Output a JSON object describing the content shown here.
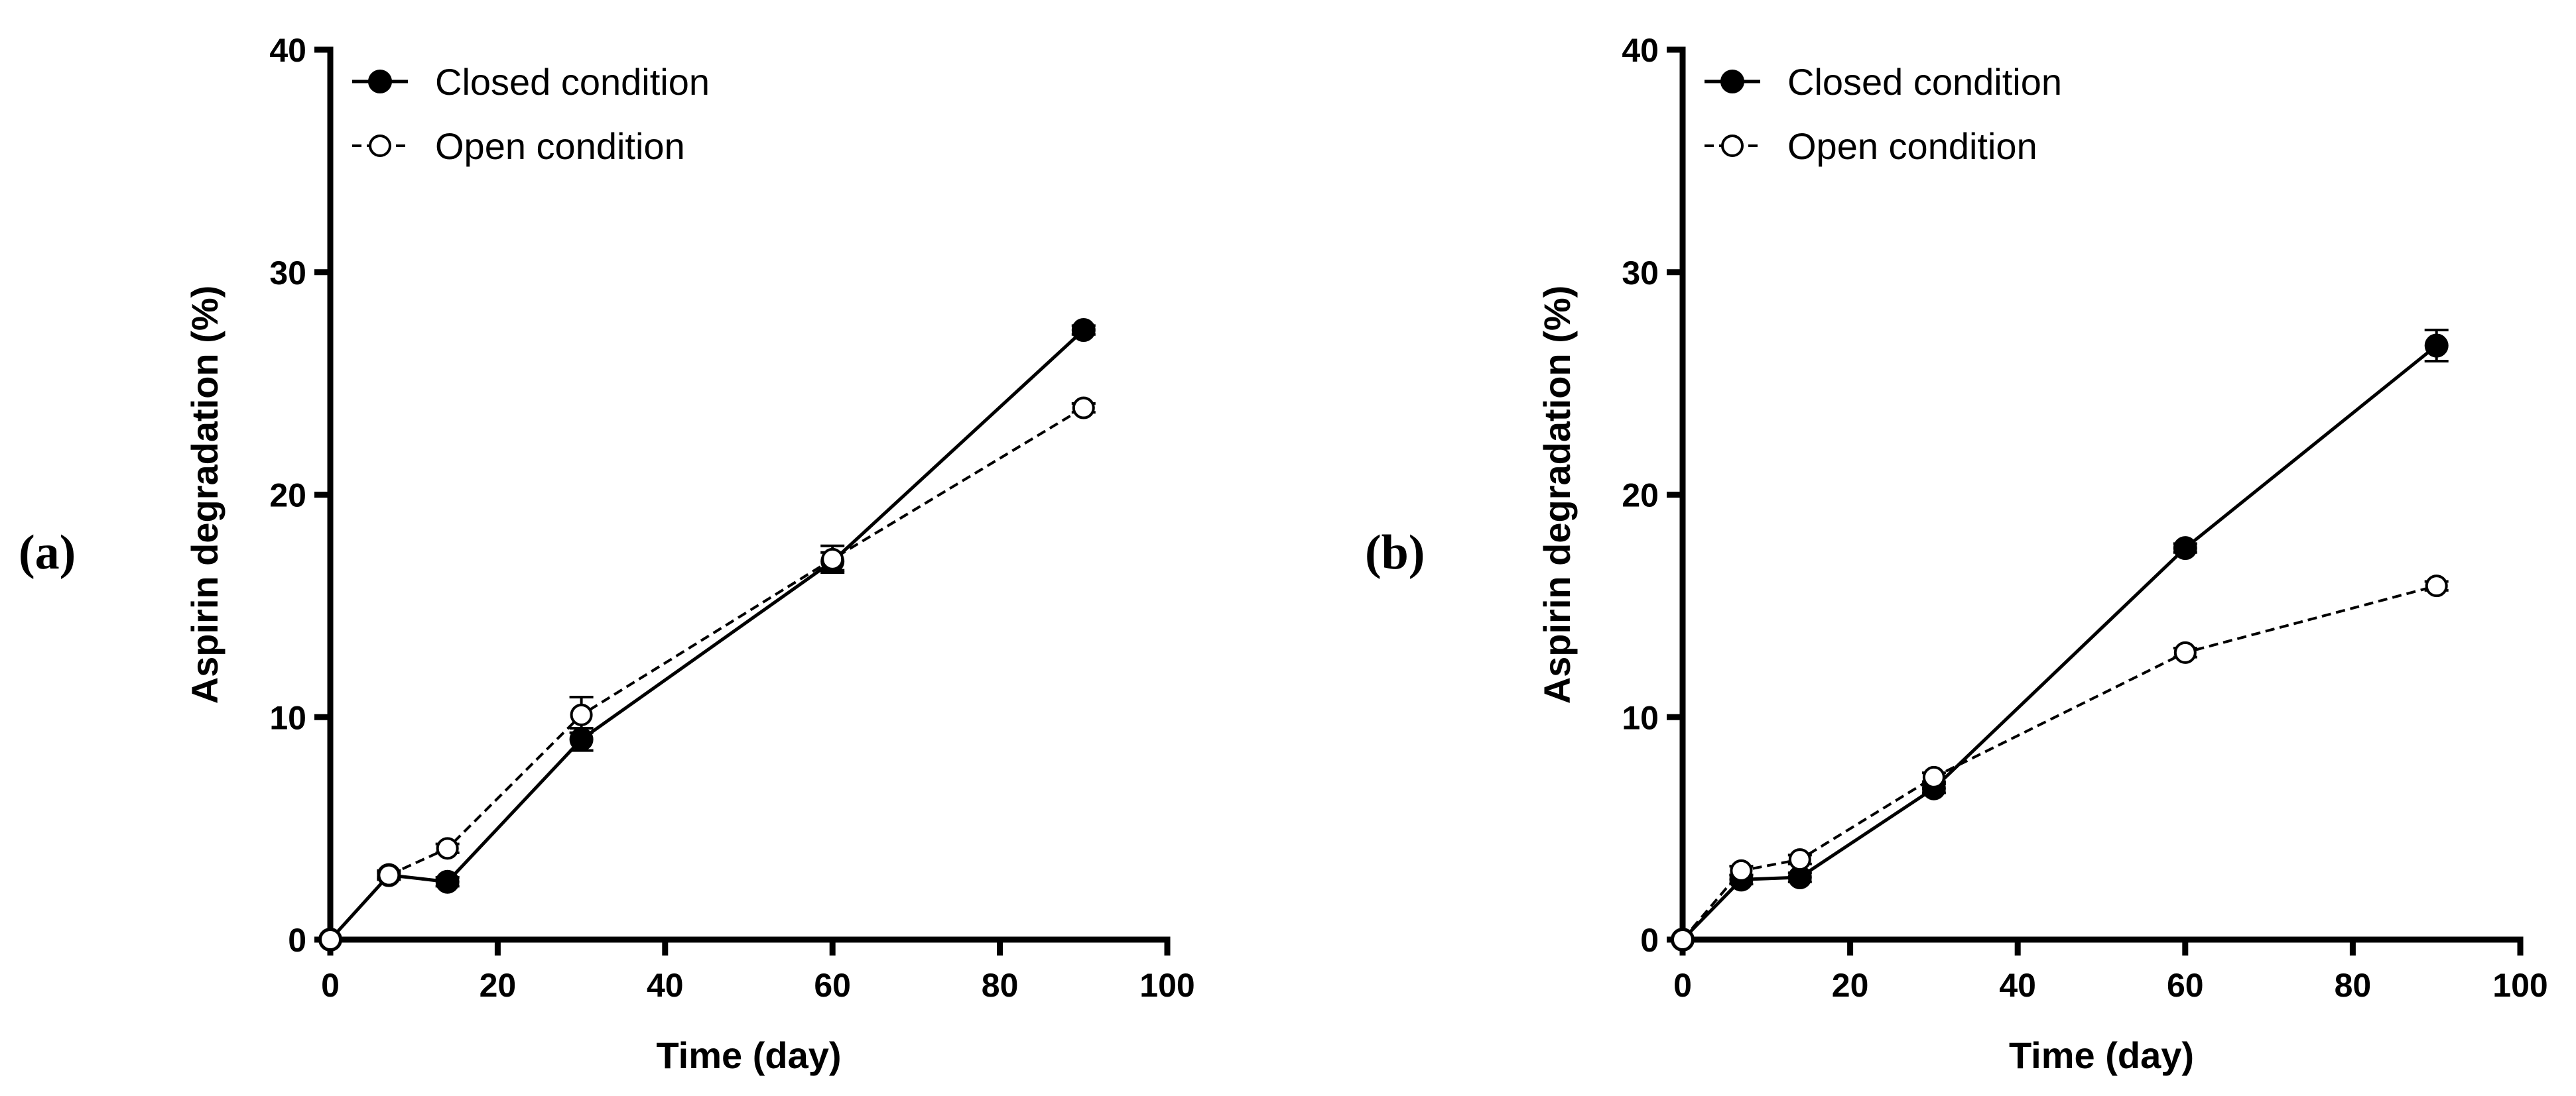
{
  "chart_data": [
    {
      "type": "line",
      "panel_label": "(a)",
      "xlabel": "Time (day)",
      "ylabel": "Aspirin degradation (%)",
      "xlim": [
        0,
        100
      ],
      "ylim": [
        0,
        40
      ],
      "xticks": [
        0,
        20,
        40,
        60,
        80,
        100
      ],
      "yticks": [
        0,
        10,
        20,
        30,
        40
      ],
      "legend_position": "top-left",
      "series": [
        {
          "name": "Closed condition",
          "marker": "filled-circle",
          "line": "solid",
          "x": [
            0,
            7,
            14,
            30,
            60,
            90
          ],
          "y": [
            0,
            2.9,
            2.6,
            9.0,
            17.0,
            27.4
          ],
          "err": [
            0,
            0.2,
            0.2,
            0.5,
            0.4,
            0.2
          ]
        },
        {
          "name": "Open condition",
          "marker": "open-circle",
          "line": "dashed",
          "x": [
            0,
            7,
            14,
            30,
            60,
            90
          ],
          "y": [
            0,
            2.9,
            4.1,
            10.1,
            17.1,
            23.9
          ],
          "err": [
            0,
            0.1,
            0.2,
            0.8,
            0.6,
            0.2
          ]
        }
      ]
    },
    {
      "type": "line",
      "panel_label": "(b)",
      "xlabel": "Time (day)",
      "ylabel": "Aspirin degradation (%)",
      "xlim": [
        0,
        100
      ],
      "ylim": [
        0,
        40
      ],
      "xticks": [
        0,
        20,
        40,
        60,
        80,
        100
      ],
      "yticks": [
        0,
        10,
        20,
        30,
        40
      ],
      "legend_position": "top-left",
      "series": [
        {
          "name": "Closed condition",
          "marker": "filled-circle",
          "line": "solid",
          "x": [
            0,
            7,
            14,
            30,
            60,
            90
          ],
          "y": [
            0,
            2.7,
            2.8,
            6.8,
            17.6,
            26.7
          ],
          "err": [
            0,
            0.2,
            0.2,
            0.2,
            0.2,
            0.7
          ]
        },
        {
          "name": "Open condition",
          "marker": "open-circle",
          "line": "dashed",
          "x": [
            0,
            7,
            14,
            30,
            60,
            90
          ],
          "y": [
            0,
            3.1,
            3.6,
            7.3,
            12.9,
            15.9
          ],
          "err": [
            0,
            0.2,
            0.2,
            0.2,
            0.2,
            0.2
          ]
        }
      ]
    }
  ]
}
